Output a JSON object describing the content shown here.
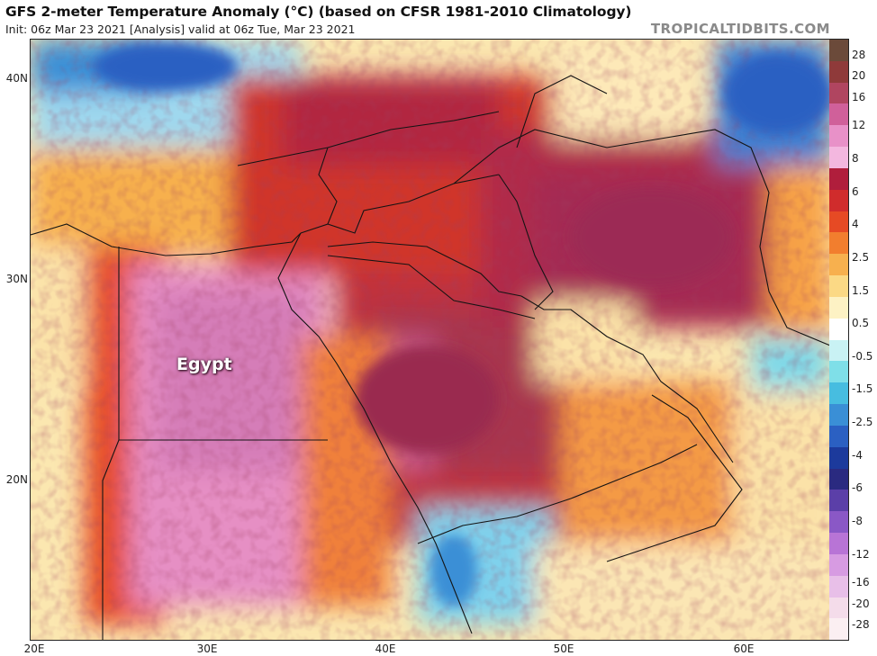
{
  "header": {
    "title": "GFS 2-meter Temperature Anomaly (°C) (based on CFSR 1981-2010 Climatology)",
    "subtitle": "Init: 06z Mar 23 2021   [Analysis]   valid at 06z Tue, Mar 23 2021",
    "brand": "TROPICALTIDBITS.COM"
  },
  "map": {
    "region_label": "Egypt",
    "lat_labels": [
      "40N",
      "30N",
      "20N"
    ],
    "lon_labels": [
      "20E",
      "30E",
      "40E",
      "50E",
      "60E"
    ],
    "lon_range": [
      20,
      65
    ],
    "lat_range": [
      12,
      42
    ]
  },
  "colorbar": {
    "labels": [
      "28",
      "20",
      "16",
      "12",
      "8",
      "6",
      "4",
      "2.5",
      "1.5",
      "0.5",
      "-0.5",
      "-1.5",
      "-2.5",
      "-4",
      "-6",
      "-8",
      "-12",
      "-16",
      "-20",
      "-28"
    ],
    "colors": [
      "#6b4a3a",
      "#8f3a3a",
      "#b04560",
      "#d0609a",
      "#e891c8",
      "#f3b7df",
      "#b01e3c",
      "#d02c2c",
      "#e64a24",
      "#f27e2e",
      "#f7b04e",
      "#fbd985",
      "#fdf2c4",
      "#ffffff",
      "#c9f2f4",
      "#7fdfe8",
      "#47bde0",
      "#3a8fd6",
      "#2b60c2",
      "#1c3a9c",
      "#2a2a80",
      "#5b3fa8",
      "#8a58c6",
      "#b874d6",
      "#d79be2",
      "#e8bfe8",
      "#f4dcea",
      "#fbeff2"
    ]
  }
}
